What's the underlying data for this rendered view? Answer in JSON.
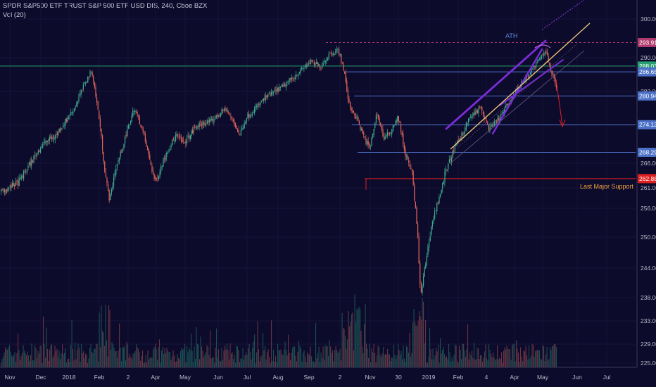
{
  "header": {
    "title": "SPDR S&P500 ETF TRUST S&P 500 ETF USD DIS, 240, Cboe BZX",
    "indicator": "Vol (20)"
  },
  "chart_data": {
    "type": "candlestick",
    "price_axis": {
      "range": [
        224,
        302
      ],
      "ticks": [
        300.0,
        290.0,
        282.0,
        274.0,
        266.0,
        261.0,
        256.0,
        250.0,
        244.0,
        238.0,
        233.0,
        229.0,
        225.0
      ]
    },
    "time_axis": {
      "ticks": [
        "Nov",
        "Dec",
        "2018",
        "Feb",
        "2",
        "Apr",
        "May",
        "Jun",
        "Jul",
        "Aug",
        "Sep",
        "2",
        "Nov",
        "30",
        "2019",
        "Feb",
        "4",
        "Apr",
        "May",
        "Jun",
        "Jul"
      ]
    },
    "price_path": [
      [
        0,
        260
      ],
      [
        25,
        262
      ],
      [
        60,
        270
      ],
      [
        80,
        272
      ],
      [
        105,
        278
      ],
      [
        120,
        284
      ],
      [
        130,
        287
      ],
      [
        140,
        276
      ],
      [
        148,
        265
      ],
      [
        155,
        258
      ],
      [
        162,
        264
      ],
      [
        175,
        270
      ],
      [
        190,
        278
      ],
      [
        200,
        274
      ],
      [
        210,
        268
      ],
      [
        220,
        262
      ],
      [
        235,
        268
      ],
      [
        250,
        272
      ],
      [
        260,
        270
      ],
      [
        280,
        274
      ],
      [
        300,
        275
      ],
      [
        320,
        278
      ],
      [
        340,
        272
      ],
      [
        350,
        276
      ],
      [
        362,
        278
      ],
      [
        380,
        281
      ],
      [
        400,
        283
      ],
      [
        420,
        286
      ],
      [
        440,
        289
      ],
      [
        455,
        288
      ],
      [
        468,
        291
      ],
      [
        480,
        292
      ],
      [
        488,
        287
      ],
      [
        495,
        279
      ],
      [
        505,
        276
      ],
      [
        515,
        272
      ],
      [
        525,
        269
      ],
      [
        535,
        277
      ],
      [
        545,
        271
      ],
      [
        555,
        273
      ],
      [
        565,
        276
      ],
      [
        575,
        268
      ],
      [
        585,
        264
      ],
      [
        593,
        250
      ],
      [
        597,
        238
      ],
      [
        603,
        244
      ],
      [
        612,
        252
      ],
      [
        622,
        258
      ],
      [
        632,
        264
      ],
      [
        642,
        268
      ],
      [
        655,
        272
      ],
      [
        668,
        276
      ],
      [
        682,
        278
      ],
      [
        695,
        273
      ],
      [
        710,
        276
      ],
      [
        725,
        280
      ],
      [
        740,
        284
      ],
      [
        755,
        287
      ],
      [
        768,
        290
      ],
      [
        775,
        292
      ],
      [
        782,
        287
      ],
      [
        790,
        283
      ]
    ],
    "horizontal_levels": [
      {
        "price": 293.91,
        "label": "293.91",
        "color": "#b03a6d",
        "style": "dashed"
      },
      {
        "price": 288.03,
        "label": "288.03",
        "color": "#28a070",
        "style": "solid"
      },
      {
        "price": 286.65,
        "label": "286.65",
        "color": "#4a70c8",
        "style": "solid"
      },
      {
        "price": 280.94,
        "label": "280.94",
        "color": "#4a70c8",
        "style": "solid"
      },
      {
        "price": 274.13,
        "label": "274.13",
        "color": "#4a70c8",
        "style": "solid"
      },
      {
        "price": 268.29,
        "label": "268.29",
        "color": "#4a70c8",
        "style": "solid"
      },
      {
        "price": 262.88,
        "label": "262.88",
        "color": "#e02020",
        "style": "solid"
      }
    ],
    "annotations": [
      {
        "text": "ATH",
        "color": "#5a88d8"
      },
      {
        "text": "Last Major Support",
        "color": "#f0a040"
      }
    ],
    "colors": {
      "up": "#3fae93",
      "down": "#e5685c",
      "background": "#0d0b2b"
    }
  }
}
